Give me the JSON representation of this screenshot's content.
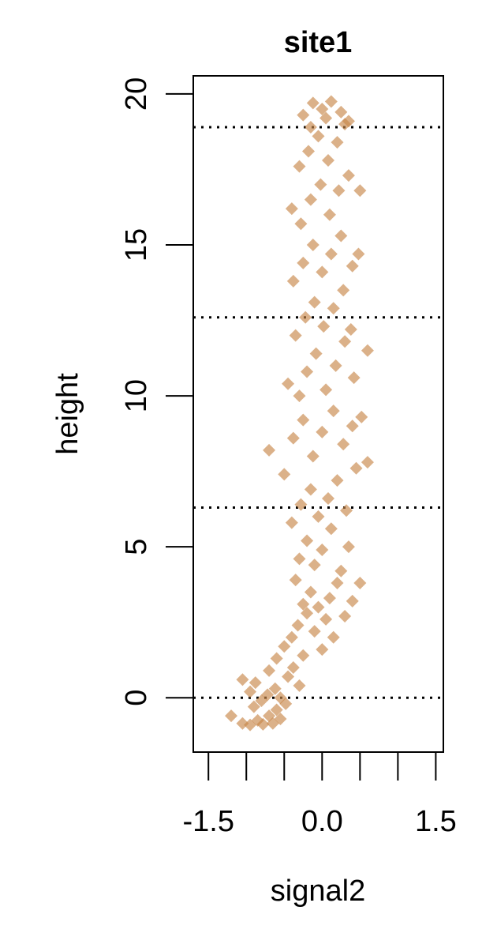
{
  "chart_data": {
    "type": "scatter",
    "title": "site1",
    "xlabel": "signal2",
    "ylabel": "height",
    "xlim": [
      -1.7,
      1.6
    ],
    "ylim": [
      -1.8,
      20.6
    ],
    "x_ticks": [
      -1.5,
      -1.0,
      -0.5,
      0.0,
      0.5,
      1.0,
      1.5
    ],
    "x_tick_labels": [
      "-1.5",
      "0.0",
      "1.5"
    ],
    "x_tick_label_values": [
      -1.5,
      0.0,
      1.5
    ],
    "y_ticks": [
      0,
      5,
      10,
      15,
      20
    ],
    "y_tick_labels": [
      "0",
      "5",
      "10",
      "15",
      "20"
    ],
    "reference_lines_y": [
      0,
      6.3,
      12.6,
      18.9
    ],
    "reference_line_style": "dotted",
    "point_color": "#c8874a",
    "point_shape": "diamond",
    "grid": false,
    "legend": "none",
    "series": [
      {
        "points": [
          [
            -1.2,
            -0.6
          ],
          [
            -1.05,
            -0.85
          ],
          [
            -0.95,
            -0.9
          ],
          [
            -0.85,
            -0.75
          ],
          [
            -0.78,
            -0.88
          ],
          [
            -0.7,
            -0.6
          ],
          [
            -0.65,
            -0.85
          ],
          [
            -0.6,
            -0.4
          ],
          [
            -0.55,
            -0.7
          ],
          [
            -0.9,
            -0.3
          ],
          [
            -1.05,
            0.6
          ],
          [
            -0.95,
            0.2
          ],
          [
            -0.88,
            0.5
          ],
          [
            -0.8,
            -0.1
          ],
          [
            -0.72,
            0.1
          ],
          [
            -0.62,
            0.3
          ],
          [
            -0.55,
            0.0
          ],
          [
            -0.48,
            -0.2
          ],
          [
            -0.7,
            0.9
          ],
          [
            -0.6,
            1.3
          ],
          [
            -0.5,
            1.7
          ],
          [
            -0.45,
            0.7
          ],
          [
            -0.38,
            1.0
          ],
          [
            -0.3,
            0.4
          ],
          [
            -0.25,
            1.4
          ],
          [
            -0.4,
            2.0
          ],
          [
            -0.32,
            2.4
          ],
          [
            -0.2,
            2.8
          ],
          [
            -0.1,
            2.2
          ],
          [
            0.0,
            1.6
          ],
          [
            0.05,
            2.6
          ],
          [
            0.15,
            2.0
          ],
          [
            -0.25,
            3.1
          ],
          [
            -0.15,
            3.5
          ],
          [
            -0.05,
            3.0
          ],
          [
            0.1,
            3.3
          ],
          [
            0.2,
            3.8
          ],
          [
            0.3,
            2.7
          ],
          [
            0.4,
            3.2
          ],
          [
            -0.35,
            3.9
          ],
          [
            -0.3,
            4.6
          ],
          [
            -0.2,
            5.2
          ],
          [
            -0.1,
            4.4
          ],
          [
            0.0,
            4.9
          ],
          [
            0.12,
            5.6
          ],
          [
            0.25,
            4.2
          ],
          [
            0.35,
            5.0
          ],
          [
            0.5,
            3.8
          ],
          [
            -0.4,
            5.8
          ],
          [
            -0.28,
            6.4
          ],
          [
            -0.15,
            6.9
          ],
          [
            -0.05,
            6.0
          ],
          [
            0.08,
            6.6
          ],
          [
            0.2,
            7.2
          ],
          [
            0.32,
            6.2
          ],
          [
            0.45,
            7.6
          ],
          [
            0.6,
            7.8
          ],
          [
            -0.7,
            8.2
          ],
          [
            -0.5,
            7.4
          ],
          [
            -0.38,
            8.6
          ],
          [
            -0.25,
            9.2
          ],
          [
            -0.12,
            8.0
          ],
          [
            0.0,
            8.8
          ],
          [
            0.15,
            9.5
          ],
          [
            0.28,
            8.4
          ],
          [
            0.4,
            9.0
          ],
          [
            0.52,
            9.3
          ],
          [
            -0.45,
            10.4
          ],
          [
            -0.3,
            10.0
          ],
          [
            -0.2,
            10.8
          ],
          [
            -0.08,
            11.4
          ],
          [
            0.05,
            10.2
          ],
          [
            0.18,
            11.0
          ],
          [
            0.3,
            11.8
          ],
          [
            0.42,
            10.6
          ],
          [
            0.6,
            11.5
          ],
          [
            -0.35,
            12.0
          ],
          [
            -0.22,
            12.6
          ],
          [
            -0.1,
            13.1
          ],
          [
            0.02,
            12.3
          ],
          [
            0.15,
            12.9
          ],
          [
            0.28,
            13.5
          ],
          [
            0.38,
            12.2
          ],
          [
            -0.38,
            13.8
          ],
          [
            -0.25,
            14.4
          ],
          [
            -0.12,
            15.0
          ],
          [
            0.0,
            14.1
          ],
          [
            0.12,
            14.7
          ],
          [
            0.25,
            15.3
          ],
          [
            0.4,
            14.3
          ],
          [
            0.48,
            14.7
          ],
          [
            -0.4,
            16.2
          ],
          [
            -0.28,
            15.7
          ],
          [
            -0.15,
            16.5
          ],
          [
            -0.02,
            17.0
          ],
          [
            0.1,
            16.0
          ],
          [
            0.22,
            16.8
          ],
          [
            0.35,
            17.3
          ],
          [
            0.5,
            16.8
          ],
          [
            -0.3,
            17.6
          ],
          [
            -0.18,
            18.1
          ],
          [
            -0.05,
            18.6
          ],
          [
            0.08,
            17.8
          ],
          [
            0.2,
            18.4
          ],
          [
            0.3,
            19.0
          ],
          [
            -0.25,
            19.3
          ],
          [
            -0.12,
            19.7
          ],
          [
            0.0,
            19.5
          ],
          [
            0.12,
            19.75
          ],
          [
            0.25,
            19.4
          ],
          [
            0.35,
            19.1
          ],
          [
            -0.15,
            18.9
          ],
          [
            0.05,
            19.2
          ]
        ]
      }
    ]
  }
}
